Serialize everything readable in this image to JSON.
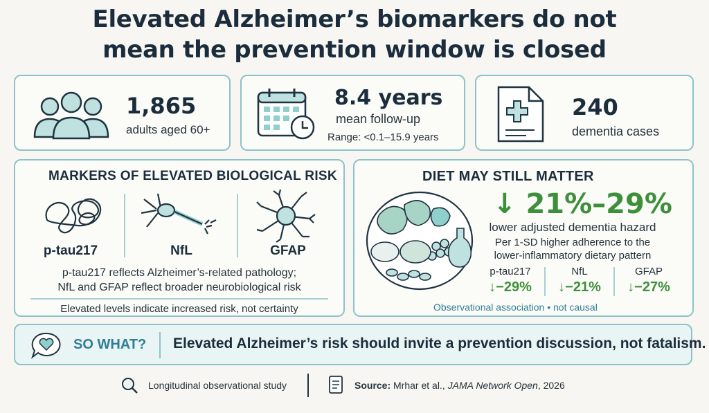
{
  "title": {
    "line1": "Elevated Alzheimer’s biomarkers do not",
    "line2": "mean the prevention window is closed"
  },
  "stats": {
    "adults": {
      "number": "1,865",
      "label": "adults aged 60+",
      "icon": "people-icon"
    },
    "followup": {
      "number": "8.4 years",
      "label": "mean follow-up",
      "range": "Range: <0.1–15.9 years",
      "icon": "calendar-clock-icon"
    },
    "cases": {
      "number": "240",
      "label": "dementia cases",
      "icon": "medical-document-icon"
    }
  },
  "markers": {
    "heading": "MARKERS OF ELEVATED BIOLOGICAL RISK",
    "items": [
      {
        "label": "p-tau217",
        "icon": "tangle-icon"
      },
      {
        "label": "NfL",
        "icon": "damaged-neuron-icon"
      },
      {
        "label": "GFAP",
        "icon": "astrocyte-icon"
      }
    ],
    "desc_line1": "p-tau217 reflects Alzheimer’s-related pathology;",
    "desc_line2": "NfL and GFAP reflect broader neurobiological risk",
    "caveat": "Elevated levels indicate increased risk, not certainty"
  },
  "diet": {
    "heading": "DIET MAY STILL MATTER",
    "range": "↓ 21%–29%",
    "hazard": "lower adjusted dementia hazard",
    "per_line1": "Per 1-SD higher adherence to the",
    "per_line2": "lower-inflammatory dietary pattern",
    "breakdown": [
      {
        "label": "p-tau217",
        "value": "↓−29%"
      },
      {
        "label": "NfL",
        "value": "↓−21%"
      },
      {
        "label": "GFAP",
        "value": "↓−27%"
      }
    ],
    "note": "Observational association • not causal",
    "icon": "food-plate-icon"
  },
  "sowhat": {
    "label": "SO WHAT?",
    "message": "Elevated Alzheimer’s risk should invite a prevention discussion, not fatalism.",
    "icon": "heart-speech-icon"
  },
  "footer": {
    "study_type": "Longitudinal observational study",
    "source_label": "Source:",
    "source_authors": "Mrhar et al.,",
    "source_journal": "JAMA Network Open",
    "source_year": ", 2026"
  },
  "colors": {
    "accent_teal": "#8cc3c8",
    "green": "#3e8f3a",
    "text_dark": "#1b2d3c",
    "link_blue": "#2f7e96"
  }
}
